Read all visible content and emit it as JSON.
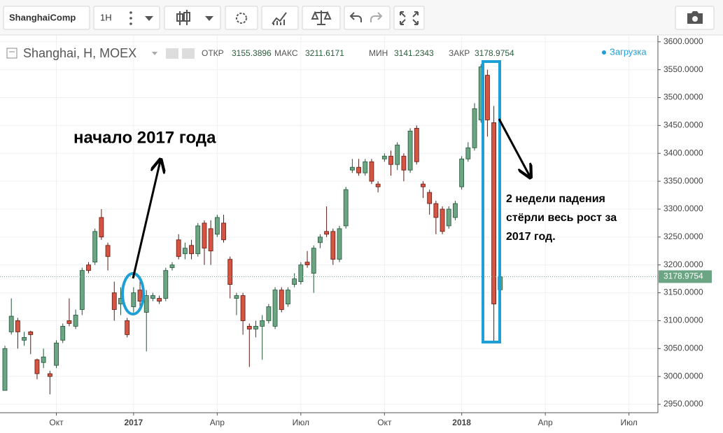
{
  "chart_data": {
    "type": "candlestick",
    "toolbar": {
      "symbol": "ShanghaiComp",
      "interval": "1H"
    },
    "title": "Shanghai, H, MOEX",
    "ohlc_labels": [
      "ОТКР",
      "МАКС",
      "МИН",
      "ЗАКР"
    ],
    "status": "Загрузка",
    "annotations": [
      [
        "начало 2017 года"
      ],
      [
        "2 недели падения",
        "стёрли весь рост за",
        "2017 год."
      ]
    ],
    "categories": [
      null,
      null,
      null,
      null,
      null,
      null,
      null,
      null,
      "Окт",
      null,
      null,
      null,
      null,
      null,
      null,
      null,
      null,
      null,
      null,
      null,
      "2017",
      null,
      null,
      null,
      null,
      null,
      null,
      null,
      null,
      null,
      null,
      null,
      null,
      "Апр",
      null,
      null,
      null,
      null,
      null,
      null,
      null,
      null,
      null,
      null,
      null,
      null,
      "Июл",
      null,
      null,
      null,
      null,
      null,
      null,
      null,
      null,
      null,
      null,
      null,
      null,
      "Окт",
      null,
      null,
      null,
      null,
      null,
      null,
      null,
      null,
      null,
      null,
      null,
      "2018",
      null,
      null,
      null,
      null,
      null,
      null,
      null,
      null,
      null,
      null,
      null,
      null,
      "Апр",
      null,
      null,
      null,
      null,
      null,
      null,
      null,
      null,
      null,
      null,
      null,
      null,
      "Июл",
      null,
      null,
      null,
      null
    ],
    "open": [
      2975,
      3080,
      3100,
      3065,
      3080,
      3030,
      3025,
      3005,
      3020,
      3065,
      3100,
      3090,
      3120,
      3200,
      3205,
      3285,
      3235,
      3150,
      3130,
      3100,
      3125,
      3155,
      3115,
      3140,
      3140,
      3140,
      3195,
      3245,
      3220,
      3235,
      3220,
      3275,
      3265,
      3255,
      3275,
      3210,
      3140,
      3145,
      3090,
      3085,
      3090,
      3100,
      3090,
      3155,
      3130,
      3165,
      3170,
      3205,
      3185,
      3240,
      3260,
      3260,
      3210,
      3270,
      3370,
      3375,
      3365,
      3385,
      3345,
      3390,
      3395,
      3380,
      3395,
      3370,
      3445,
      3345,
      3330,
      3310,
      3300,
      3270,
      3285,
      3340,
      3390,
      3410,
      3460,
      3540,
      3455,
      3155.3896,
      null,
      null,
      null,
      null,
      null,
      null,
      null,
      null,
      null,
      null,
      null,
      null,
      null,
      null,
      null,
      null,
      null,
      null,
      null,
      null,
      null,
      null,
      null,
      null
    ],
    "high": [
      3055,
      3140,
      3105,
      3080,
      3082,
      3032,
      3050,
      3010,
      3065,
      3095,
      3140,
      3120,
      3195,
      3205,
      3265,
      3300,
      3240,
      3170,
      3160,
      3105,
      3160,
      3170,
      3155,
      3150,
      3145,
      3195,
      3205,
      3255,
      3240,
      3245,
      3275,
      3280,
      3280,
      3290,
      3290,
      3215,
      3150,
      3150,
      3095,
      3100,
      3110,
      3130,
      3160,
      3160,
      3160,
      3185,
      3205,
      3225,
      3235,
      3255,
      3305,
      3265,
      3270,
      3340,
      3390,
      3390,
      3390,
      3390,
      3350,
      3400,
      3405,
      3420,
      3400,
      3445,
      3450,
      3350,
      3335,
      3315,
      3305,
      3305,
      3315,
      3395,
      3420,
      3490,
      3560,
      3550,
      3485,
      3211.6171,
      null,
      null,
      null,
      null,
      null,
      null,
      null,
      null,
      null,
      null,
      null,
      null,
      null,
      null,
      null,
      null,
      null,
      null,
      null,
      null,
      null,
      null,
      null,
      null
    ],
    "low": [
      2975,
      3075,
      3050,
      3055,
      3040,
      2995,
      3015,
      2968,
      3015,
      3060,
      3090,
      3085,
      3110,
      3185,
      3200,
      3245,
      3190,
      3100,
      3110,
      3070,
      3115,
      3120,
      3045,
      3135,
      3130,
      3135,
      3190,
      3210,
      3210,
      3210,
      3215,
      3200,
      3200,
      3250,
      3240,
      3140,
      3110,
      3075,
      3017,
      3070,
      3030,
      3095,
      3085,
      3115,
      3125,
      3160,
      3165,
      3195,
      3150,
      3230,
      3250,
      3200,
      3205,
      3265,
      3365,
      3360,
      3360,
      3345,
      3330,
      3385,
      3360,
      3370,
      3350,
      3365,
      3380,
      3320,
      3290,
      3255,
      3255,
      3265,
      3280,
      3335,
      3385,
      3405,
      3455,
      3430,
      3060,
      3141.2343,
      null,
      null,
      null,
      null,
      null,
      null,
      null,
      null,
      null,
      null,
      null,
      null,
      null,
      null,
      null,
      null,
      null,
      null,
      null,
      null,
      null,
      null,
      null,
      null
    ],
    "close": [
      3050,
      3108,
      3080,
      3070,
      3075,
      3005,
      3035,
      3000,
      3060,
      3090,
      3095,
      3110,
      3190,
      3190,
      3260,
      3250,
      3215,
      3120,
      3140,
      3075,
      3150,
      3135,
      3145,
      3145,
      3135,
      3190,
      3200,
      3215,
      3230,
      3220,
      3270,
      3230,
      3225,
      3285,
      3245,
      3165,
      3145,
      3100,
      3085,
      3090,
      3100,
      3125,
      3155,
      3120,
      3155,
      3175,
      3200,
      3200,
      3230,
      3250,
      3255,
      3210,
      3265,
      3335,
      3375,
      3365,
      3385,
      3350,
      3340,
      3395,
      3380,
      3415,
      3370,
      3440,
      3385,
      3340,
      3310,
      3285,
      3260,
      3300,
      3310,
      3390,
      3410,
      3480,
      3555,
      3460,
      3130,
      3178.9754,
      null,
      null,
      null,
      null,
      null,
      null,
      null,
      null,
      null,
      null,
      null,
      null,
      null,
      null,
      null,
      null,
      null,
      null,
      null,
      null,
      null,
      null,
      null,
      null
    ],
    "up_color": "#6ba583",
    "down_color": "#d75442",
    "ylim": [
      2935,
      3611
    ],
    "yticks": [
      {
        "value": 2950,
        "label": "2950.0000"
      },
      {
        "value": 3000,
        "label": "3000.0000"
      },
      {
        "value": 3050,
        "label": "3050.0000"
      },
      {
        "value": 3100,
        "label": "3100.0000"
      },
      {
        "value": 3150,
        "label": "3150.0000"
      },
      {
        "value": 3200,
        "label": "3200.0000"
      },
      {
        "value": 3250,
        "label": "3250.0000"
      },
      {
        "value": 3300,
        "label": "3300.0000"
      },
      {
        "value": 3350,
        "label": "3350.0000"
      },
      {
        "value": 3400,
        "label": "3400.0000"
      },
      {
        "value": 3450,
        "label": "3450.0000"
      },
      {
        "value": 3500,
        "label": "3500.0000"
      },
      {
        "value": 3550,
        "label": "3550.0000"
      },
      {
        "value": 3600,
        "label": "3600.0000"
      }
    ],
    "grid": true
  }
}
